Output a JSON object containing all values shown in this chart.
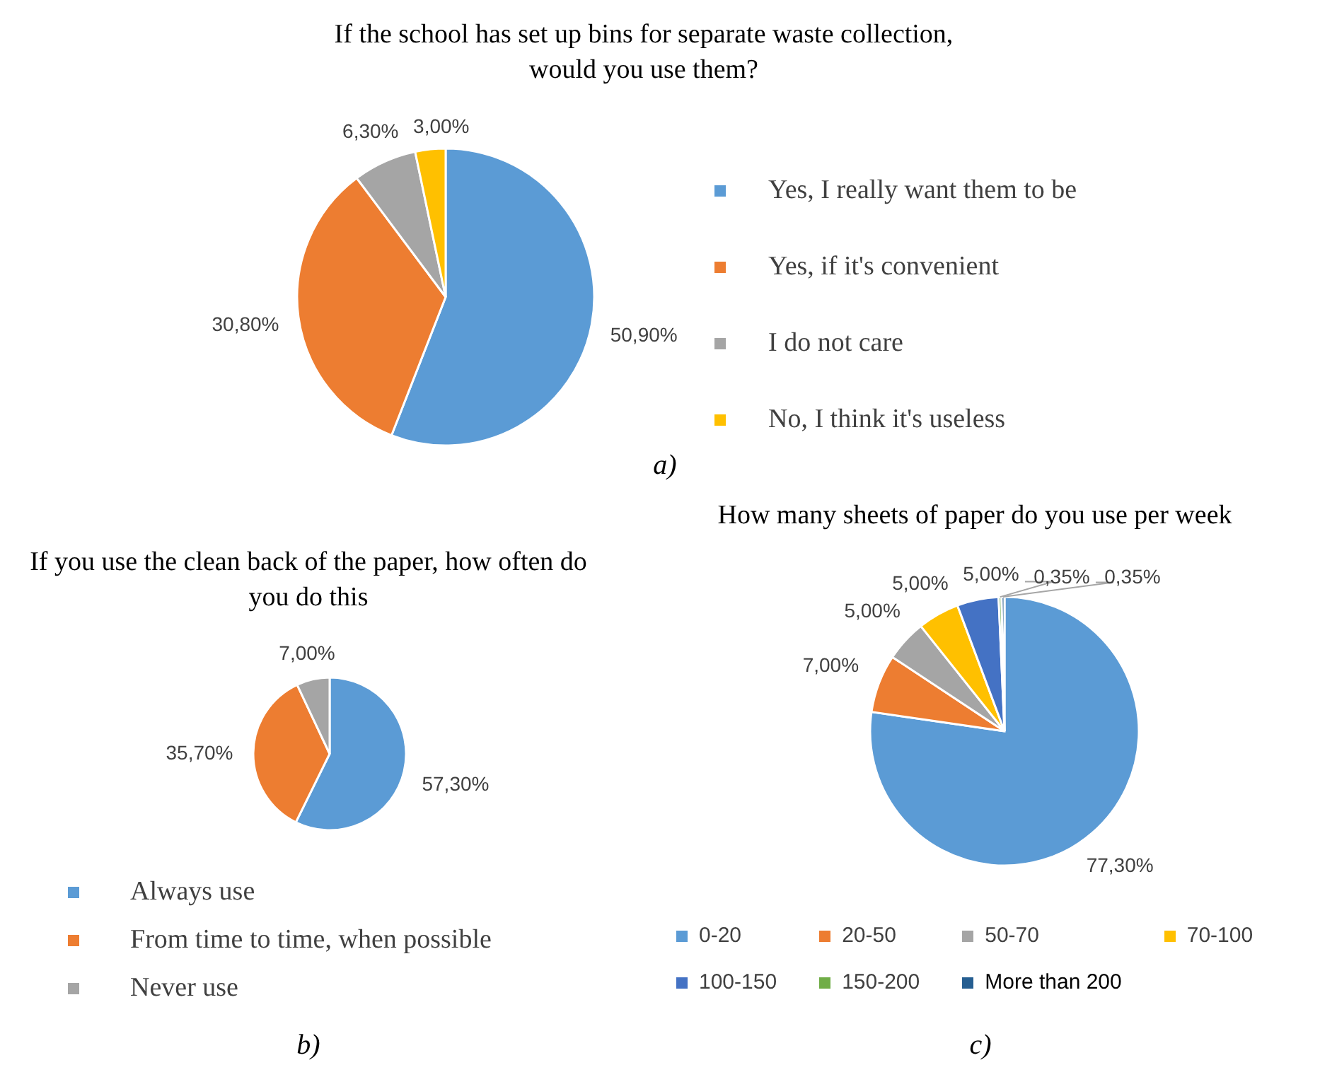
{
  "chart_data": [
    {
      "type": "pie",
      "title": "If the school has set up bins for separate waste collection, would you use them?",
      "categories": [
        "Yes, I really want them to be",
        "Yes, if it's convenient",
        "I do not care",
        "No, I think it's useless"
      ],
      "values": [
        50.9,
        30.8,
        6.3,
        3.0
      ],
      "colors": [
        "#5b9bd5",
        "#ed7d31",
        "#a5a5a5",
        "#ffc000"
      ],
      "value_labels": [
        "50,90%",
        "30,80%",
        "6,30%",
        "3,00%"
      ],
      "legend": "right",
      "annotations": [
        "a)"
      ]
    },
    {
      "type": "pie",
      "title": "If you use the clean back of the paper, how often do you do this",
      "categories": [
        "Always use",
        "From time to time, when possible",
        "Never use"
      ],
      "values": [
        57.3,
        35.7,
        7.0
      ],
      "colors": [
        "#5b9bd5",
        "#ed7d31",
        "#a5a5a5"
      ],
      "value_labels": [
        "57,30%",
        "35,70%",
        "7,00%"
      ],
      "legend": "bottom",
      "annotations": [
        "b)"
      ]
    },
    {
      "type": "pie",
      "title": "How many sheets of paper do you use per week",
      "categories": [
        "0-20",
        "20-50",
        "50-70",
        "70-100",
        "100-150",
        "150-200",
        "More than 200"
      ],
      "values": [
        77.3,
        7.0,
        5.0,
        5.0,
        5.0,
        0.35,
        0.35
      ],
      "colors": [
        "#5b9bd5",
        "#ed7d31",
        "#a5a5a5",
        "#ffc000",
        "#4472c4",
        "#70ad47",
        "#255e91"
      ],
      "value_labels": [
        "77,30%",
        "7,00%",
        "5,00%",
        "5,00%",
        "5,00%",
        "0,35%",
        "0,35%"
      ],
      "legend": "bottom",
      "annotations": [
        "c)"
      ]
    }
  ]
}
